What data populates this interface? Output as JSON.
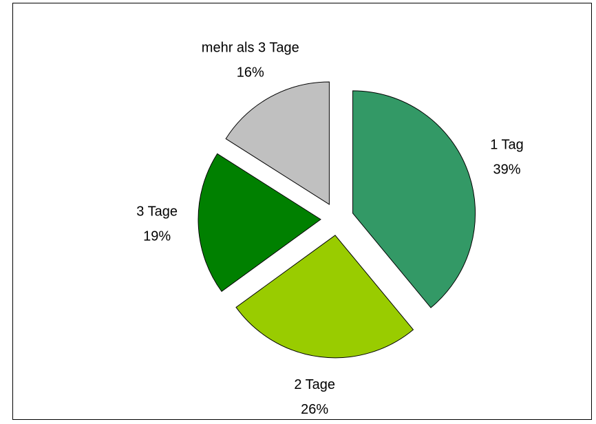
{
  "chart_data": {
    "type": "pie",
    "categories": [
      "1 Tag",
      "2 Tage",
      "3 Tage",
      "mehr als 3 Tage"
    ],
    "values": [
      39,
      26,
      19,
      16
    ],
    "value_labels": [
      "39%",
      "26%",
      "19%",
      "16%"
    ],
    "colors": [
      "#339966",
      "#99cc00",
      "#008000",
      "#c0c0c0"
    ]
  }
}
